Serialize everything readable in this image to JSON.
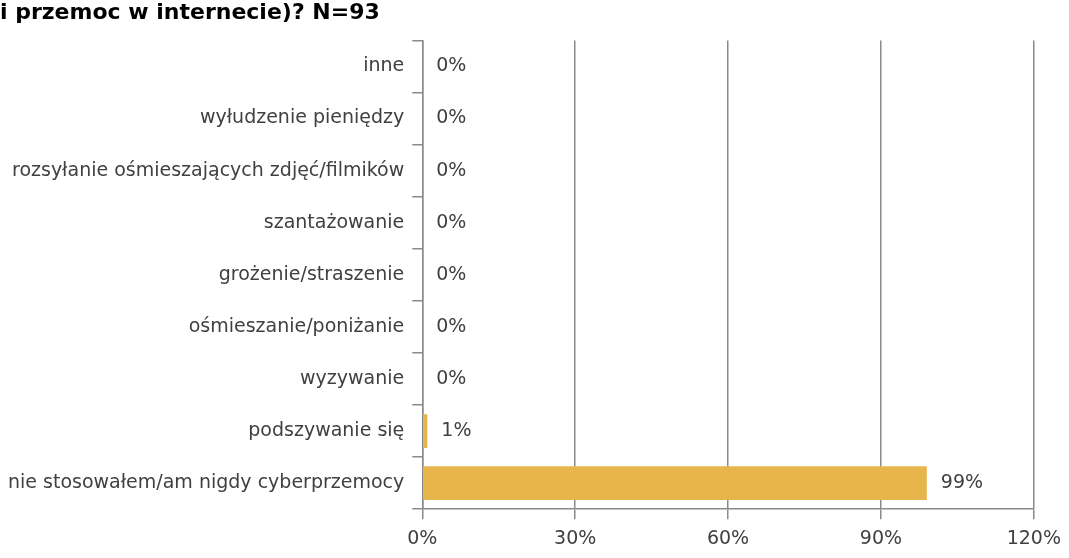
{
  "chart_data": {
    "type": "bar",
    "orientation": "horizontal",
    "title": "i przemoc w internecie)? N=93",
    "categories": [
      "inne",
      "wyłudzenie pieniędzy",
      "rozsyłanie ośmieszających zdjęć/filmików",
      "szantażowanie",
      "grożenie/straszenie",
      "ośmieszanie/poniżanie",
      "wyzywanie",
      "podszywanie się",
      "nie stosowałem/am nigdy cyberprzemocy"
    ],
    "values": [
      0,
      0,
      0,
      0,
      0,
      0,
      0,
      1,
      99
    ],
    "value_labels": [
      "0%",
      "0%",
      "0%",
      "0%",
      "0%",
      "0%",
      "0%",
      "1%",
      "99%"
    ],
    "color": "#e8b44c",
    "xlim": [
      0,
      120
    ],
    "xticks": [
      {
        "value": 0,
        "label": "0%"
      },
      {
        "value": 30,
        "label": "30%"
      },
      {
        "value": 60,
        "label": "60%"
      },
      {
        "value": 90,
        "label": "90%"
      },
      {
        "value": 120,
        "label": "120%"
      }
    ],
    "grid": "x",
    "legend": false
  }
}
